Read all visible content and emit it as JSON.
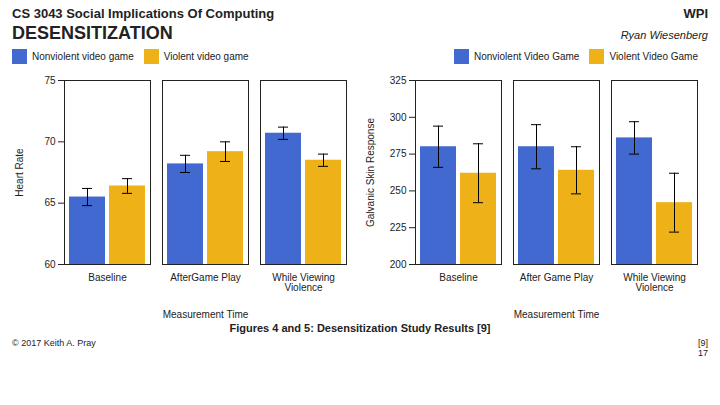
{
  "title": "CS 3043 Social Implications Of Computing",
  "subtitle": "DESENSITIZATION",
  "annotations": [
    "WPI",
    "Ryan Wiesenberg",
    "Figures 4 and 5: Desensitization Study Results [9]",
    "[9]",
    "© 2017 Keith A. Pray",
    "17"
  ],
  "chart_data": [
    {
      "type": "bar",
      "categories": [
        "Baseline",
        "AfterGame Play",
        "While Viewing\nViolence"
      ],
      "series": [
        {
          "name": "Nonviolent video game",
          "values": [
            65.5,
            68.2,
            70.7
          ],
          "errors": [
            0.7,
            0.7,
            0.5
          ]
        },
        {
          "name": "Violent video game",
          "values": [
            66.4,
            69.2,
            68.5
          ],
          "errors": [
            0.6,
            0.8,
            0.5
          ]
        }
      ],
      "ylabel": "Heart Rate",
      "xlabel": "Measurement Time",
      "ylim": [
        60,
        75
      ],
      "yticks": [
        60,
        65,
        70,
        75
      ],
      "legend": "upper left"
    },
    {
      "type": "bar",
      "categories": [
        "Baseline",
        "After Game Play",
        "While Viewing\nViolence"
      ],
      "series": [
        {
          "name": "Nonviolent Video Game",
          "values": [
            280,
            280,
            286
          ],
          "errors": [
            14,
            15,
            11
          ]
        },
        {
          "name": "Violent Video Game",
          "values": [
            262,
            264,
            242
          ],
          "errors": [
            20,
            16,
            20
          ]
        }
      ],
      "ylabel": "Galvanic Skin Response",
      "xlabel": "Measurement Time",
      "ylim": [
        200,
        325
      ],
      "yticks": [
        200,
        225,
        250,
        275,
        300,
        325
      ],
      "legend": "upper right"
    }
  ]
}
